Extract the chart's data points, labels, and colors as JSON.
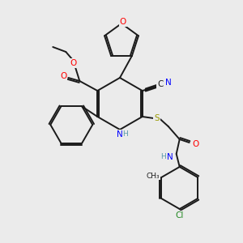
{
  "bg_color": "#ebebeb",
  "bond_color": "#1a1a1a",
  "colors": {
    "O": "#ff0000",
    "N": "#0000ff",
    "S": "#999900",
    "Cl": "#228822",
    "C": "#1a1a1a",
    "H": "#5599aa"
  },
  "font_size": 7.5,
  "bond_lw": 1.4
}
